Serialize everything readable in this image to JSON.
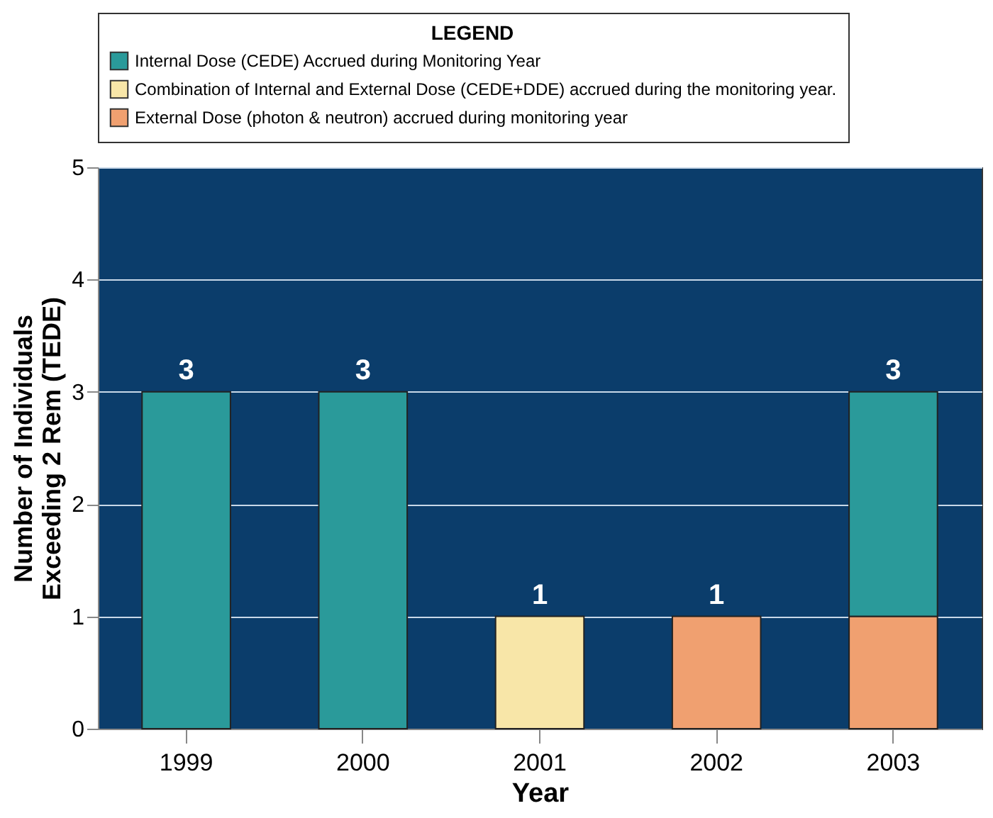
{
  "chart_data": {
    "type": "bar",
    "xlabel": "Year",
    "ylabel": "Number of Individuals\nExceeding 2 Rem (TEDE)",
    "legend_title": "LEGEND",
    "categories": [
      "1999",
      "2000",
      "2001",
      "2002",
      "2003"
    ],
    "stacked": true,
    "series": [
      {
        "name": "External Dose (photon & neutron) accrued during monitoring year",
        "color": "#f0a070",
        "values": [
          null,
          null,
          null,
          1,
          1
        ]
      },
      {
        "name": "Combination of Internal and External Dose (CEDE+DDE) accrued during the monitoring year.",
        "color": "#f8e6a8",
        "values": [
          null,
          null,
          1,
          null,
          null
        ]
      },
      {
        "name": "Internal Dose (CEDE) Accrued during Monitoring Year",
        "color": "#2a9a9a",
        "values": [
          3,
          3,
          null,
          null,
          2
        ]
      }
    ],
    "totals": [
      "3",
      "3",
      "1",
      "1",
      "3"
    ],
    "ylim": [
      0,
      5
    ],
    "yticks": [
      0,
      1,
      2,
      3,
      4,
      5
    ],
    "grid": "y",
    "legend": "top"
  }
}
